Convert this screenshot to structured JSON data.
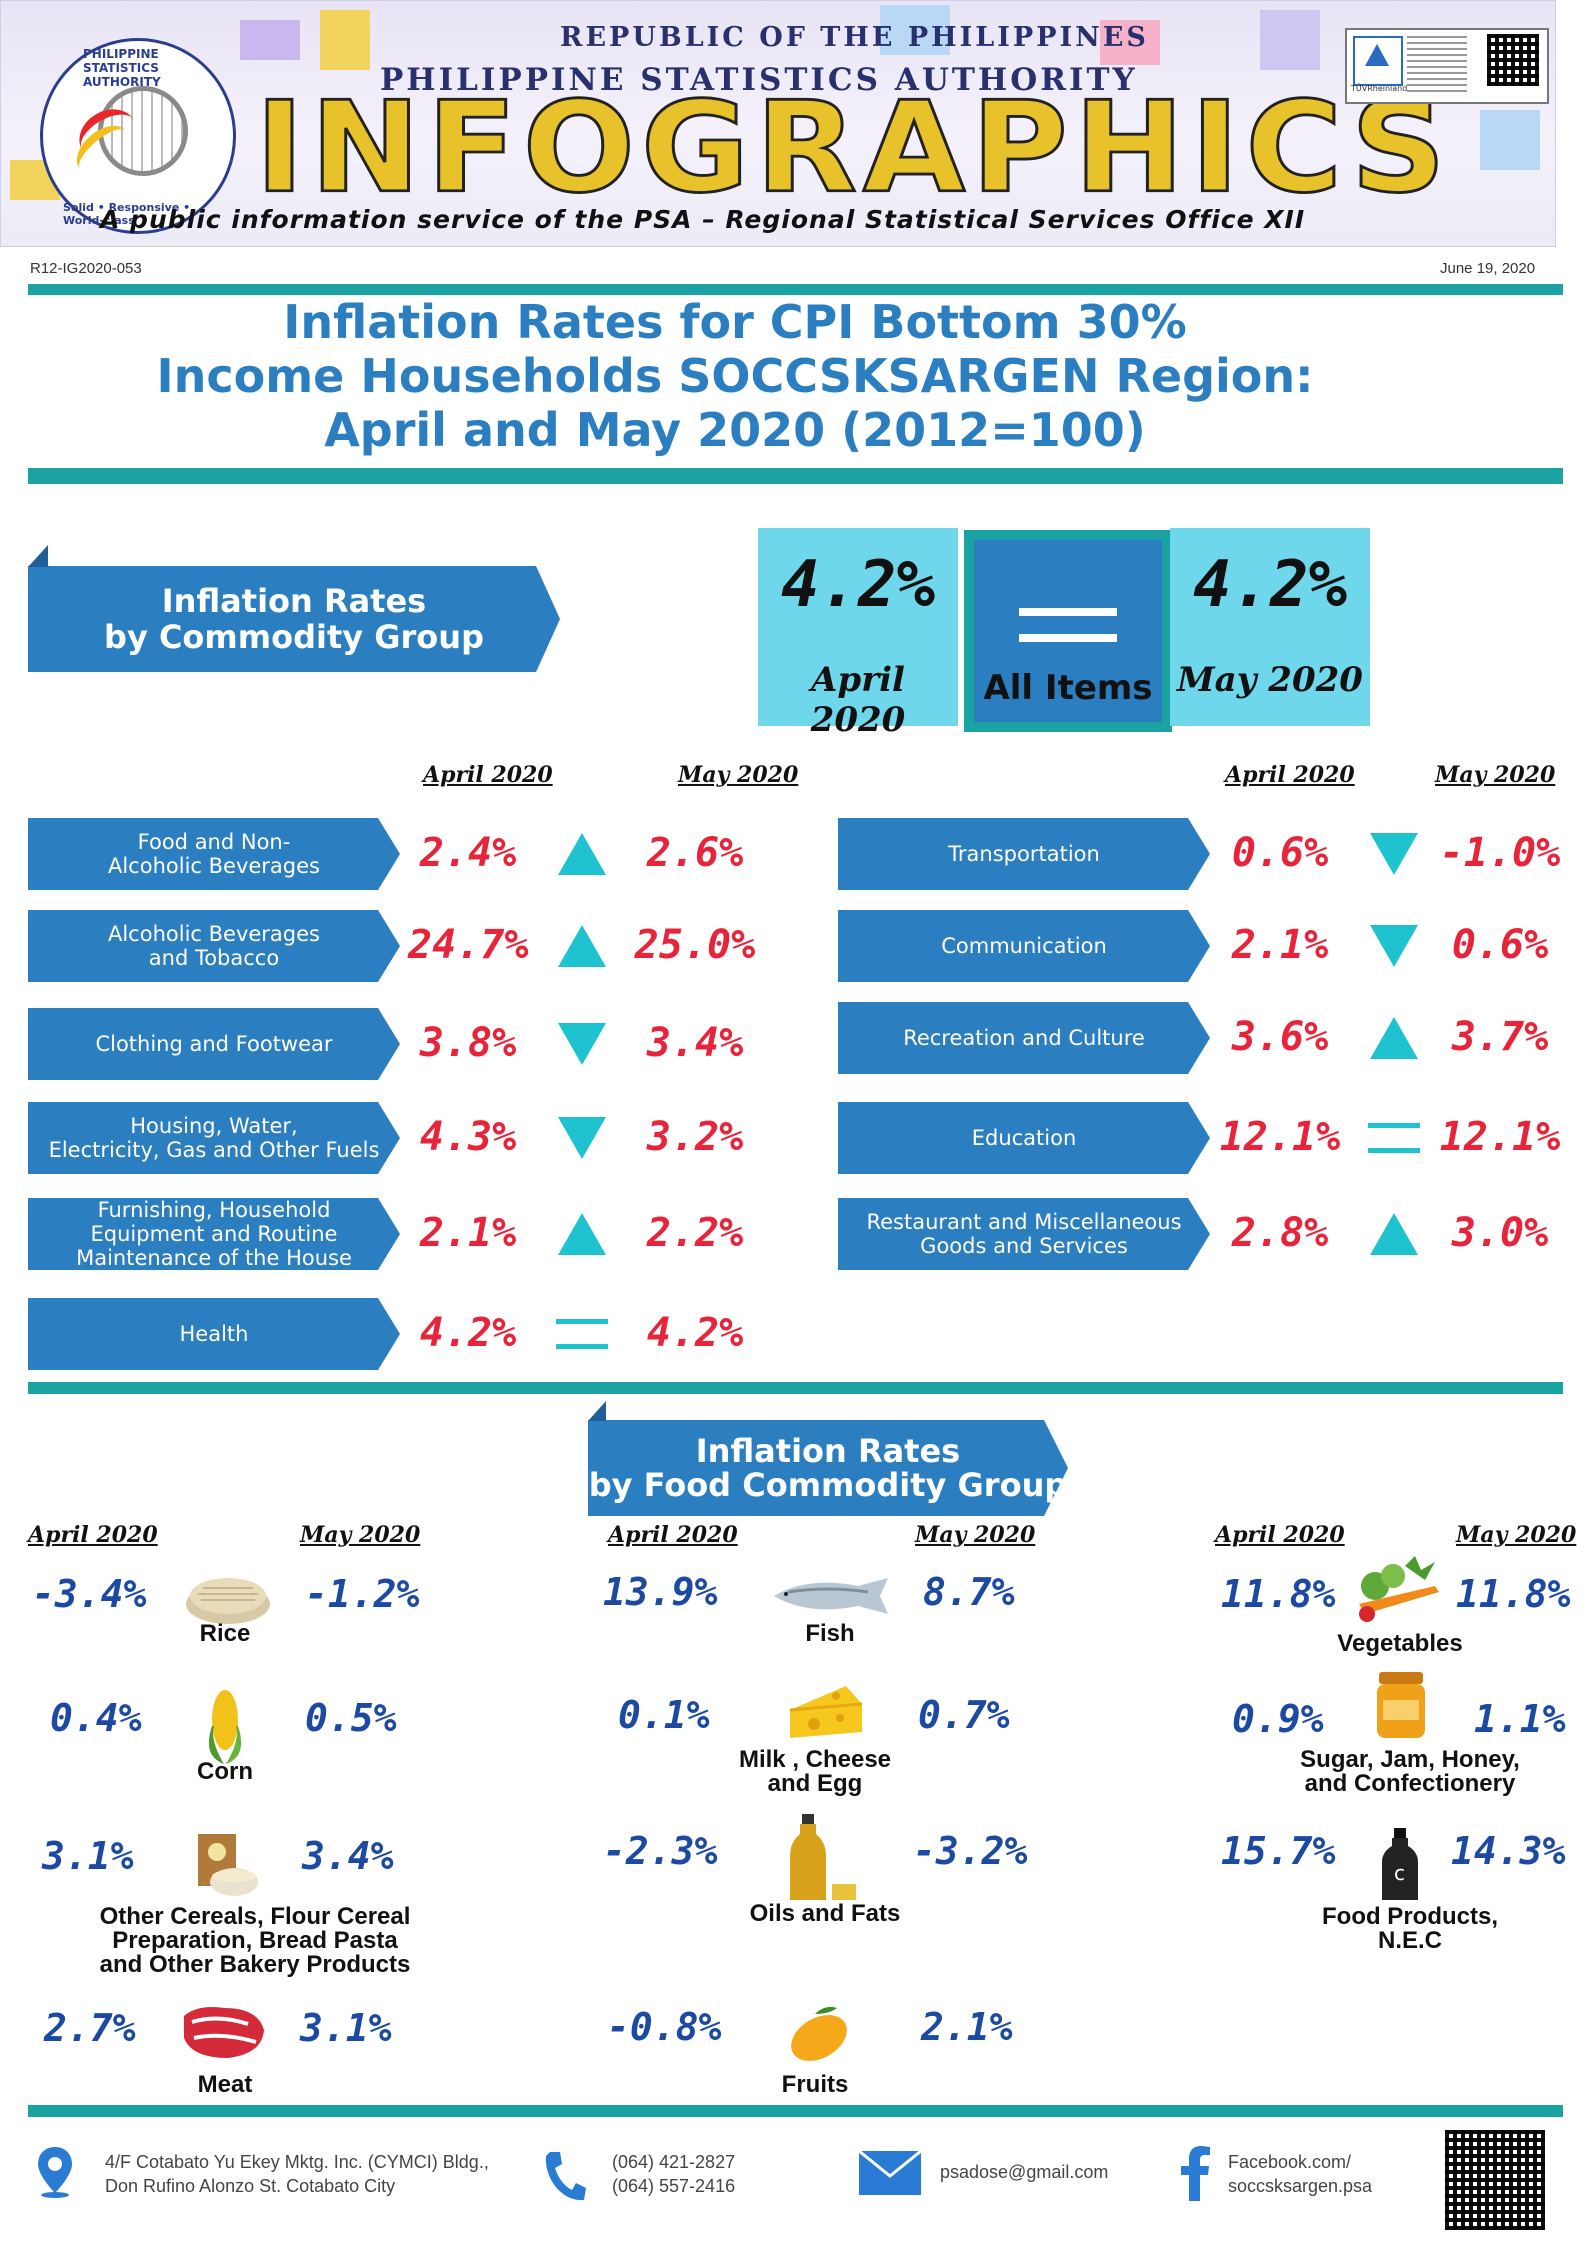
{
  "header": {
    "line1": "REPUBLIC OF THE PHILIPPINES",
    "line2": "PHILIPPINE STATISTICS AUTHORITY",
    "big": "INFOGRAPHICS",
    "tagline": "A public information service of the PSA – Regional Statistical Services Office XII",
    "seal_top": "PHILIPPINE STATISTICS AUTHORITY",
    "seal_bottom": "Solid • Responsive • World-class",
    "cert": "TÜVRheinland CERTIFIED"
  },
  "meta": {
    "code": "R12-IG2020-053",
    "date": "June 19, 2020"
  },
  "title": {
    "line1": "Inflation Rates for CPI Bottom 30%",
    "line2": "Income Households SOCCSKSARGEN Region:",
    "line3": "April  and May 2020 (2012=100)"
  },
  "commodity_banner": {
    "line1": "Inflation Rates",
    "line2": "by Commodity Group"
  },
  "all_items": {
    "april_value": "4.2%",
    "april_label": "April 2020",
    "label": "All Items",
    "may_value": "4.2%",
    "may_label": "May 2020"
  },
  "month_heads": {
    "april": "April 2020",
    "may": "May 2020"
  },
  "commodity_left": [
    {
      "name": "Food and  Non-\nAlcoholic Beverages",
      "april": "2.4%",
      "may": "2.6%",
      "trend": "up"
    },
    {
      "name": "Alcoholic Beverages\nand Tobacco",
      "april": "24.7%",
      "may": "25.0%",
      "trend": "up"
    },
    {
      "name": "Clothing  and Footwear",
      "april": "3.8%",
      "may": "3.4%",
      "trend": "down"
    },
    {
      "name": "Housing, Water,\nElectricity, Gas and Other Fuels",
      "april": "4.3%",
      "may": "3.2%",
      "trend": "down"
    },
    {
      "name": "Furnishing, Household\nEquipment and Routine\nMaintenance of the House",
      "april": "2.1%",
      "may": "2.2%",
      "trend": "up"
    },
    {
      "name": "Health",
      "april": "4.2%",
      "may": "4.2%",
      "trend": "equal"
    }
  ],
  "commodity_right": [
    {
      "name": "Transportation",
      "april": "0.6%",
      "may": "-1.0%",
      "trend": "down"
    },
    {
      "name": "Communication",
      "april": "2.1%",
      "may": "0.6%",
      "trend": "down"
    },
    {
      "name": "Recreation and Culture",
      "april": "3.6%",
      "may": "3.7%",
      "trend": "up"
    },
    {
      "name": "Education",
      "april": "12.1%",
      "may": "12.1%",
      "trend": "equal"
    },
    {
      "name": "Restaurant and Miscellaneous\nGoods  and Services",
      "april": "2.8%",
      "may": "3.0%",
      "trend": "up"
    }
  ],
  "food_banner": {
    "line1": "Inflation Rates",
    "line2": "by Food Commodity Group"
  },
  "food_col1": [
    {
      "name": "Rice",
      "april": "-3.4%",
      "may": "-1.2%",
      "icon": "rice-icon"
    },
    {
      "name": "Corn",
      "april": "0.4%",
      "may": "0.5%",
      "icon": "corn-icon"
    },
    {
      "name": "Other Cereals, Flour Cereal\nPreparation, Bread Pasta\nand Other Bakery Products",
      "april": "3.1%",
      "may": "3.4%",
      "icon": "cereal-icon"
    },
    {
      "name": "Meat",
      "april": "2.7%",
      "may": "3.1%",
      "icon": "meat-icon"
    }
  ],
  "food_col2": [
    {
      "name": "Fish",
      "april": "13.9%",
      "may": "8.7%",
      "icon": "fish-icon"
    },
    {
      "name": "Milk , Cheese\nand Egg",
      "april": "0.1%",
      "may": "0.7%",
      "icon": "cheese-icon"
    },
    {
      "name": "Oils and Fats",
      "april": "-2.3%",
      "may": "-3.2%",
      "icon": "oil-bottle-icon"
    },
    {
      "name": "Fruits",
      "april": "-0.8%",
      "may": "2.1%",
      "icon": "mango-icon"
    }
  ],
  "food_col3": [
    {
      "name": "Vegetables",
      "april": "11.8%",
      "may": "11.8%",
      "icon": "vegetables-icon"
    },
    {
      "name": "Sugar, Jam, Honey,\nand Confectionery",
      "april": "0.9%",
      "may": "1.1%",
      "icon": "honey-jar-icon"
    },
    {
      "name": "Food Products,\nN.E.C",
      "april": "15.7%",
      "may": "14.3%",
      "icon": "bottle-icon"
    }
  ],
  "footer": {
    "address": "4/F Cotabato Yu Ekey Mktg. Inc. (CYMCI) Bldg.,\nDon Rufino Alonzo St. Cotabato City",
    "phone": "(064) 421-2827\n(064) 557-2416",
    "email": "psadose@gmail.com",
    "facebook": "Facebook.com/\nsoccsksargen.psa"
  },
  "colors": {
    "teal": "#1aa3a2",
    "banner_blue": "#2b7ec0",
    "card_cyan": "#6fd7ec",
    "rate_red": "#e8243a",
    "rate_blue": "#1c4aa3",
    "arrow_cyan": "#1fc2cf"
  }
}
